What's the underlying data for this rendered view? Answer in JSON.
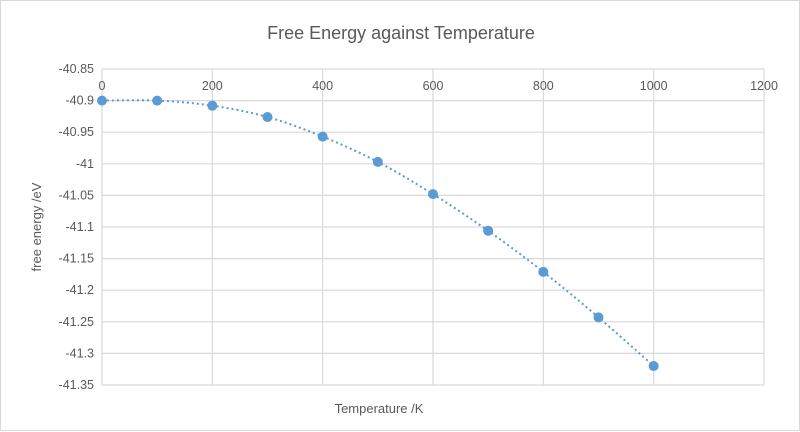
{
  "chart_data": {
    "type": "scatter",
    "title": "Free Energy against Temperature",
    "xlabel": "Temperature /K",
    "ylabel": "free energy /eV",
    "xlim": [
      0,
      1200
    ],
    "ylim": [
      -41.35,
      -40.85
    ],
    "x_ticks": [
      "0",
      "200",
      "400",
      "600",
      "800",
      "1000",
      "1200"
    ],
    "y_ticks": [
      "-40.85",
      "-40.9",
      "-40.95",
      "-41",
      "-41.05",
      "-41.1",
      "-41.15",
      "-41.2",
      "-41.25",
      "-41.3",
      "-41.35"
    ],
    "grid": true,
    "legend": "none",
    "trendline": "dotted polynomial",
    "marker_color": "#5b9bd5",
    "series": [
      {
        "x": [
          0,
          100,
          200,
          300,
          400,
          500,
          600,
          700,
          800,
          900,
          1000
        ],
        "y": [
          -40.9,
          -40.9,
          -40.908,
          -40.926,
          -40.957,
          -40.997,
          -41.048,
          -41.106,
          -41.171,
          -41.243,
          -41.32
        ]
      }
    ]
  }
}
